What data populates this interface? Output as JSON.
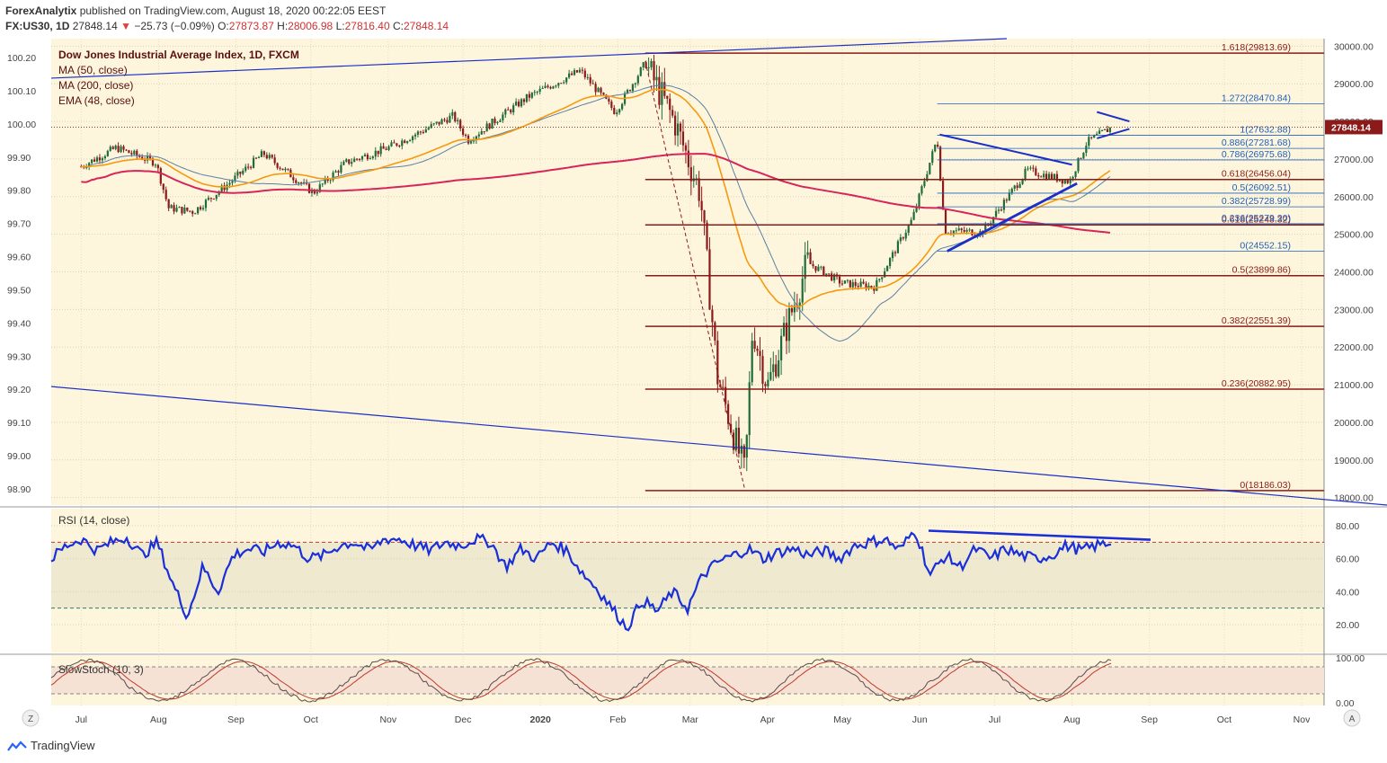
{
  "header": {
    "publisher": "ForexAnalytix",
    "published_text": "published on TradingView.com, August 18, 2020 00:22:05 EEST",
    "symbol": "FX:US30, 1D",
    "last": "27848.14",
    "change_arrow": "▼",
    "change": "−25.73 (−0.09%)",
    "o_label": "O:",
    "o": "27873.87",
    "h_label": "H:",
    "h": "28006.98",
    "l_label": "L:",
    "l": "27816.40",
    "c_label": "C:",
    "c": "27848.14"
  },
  "legend": {
    "title": "Dow Jones Industrial Average Index, 1D, FXCM",
    "ma50": "MA (50, close)",
    "ma200": "MA (200, close)",
    "ema48": "EMA (48, close)"
  },
  "rsi_label": "RSI (14, close)",
  "stoch_label": "SlowStoch (10, 3)",
  "footer": {
    "brand": "TradingView",
    "z_button": "Z",
    "a_button": "A"
  },
  "colors": {
    "background": "#fdf6dc",
    "candle_up": "#1f6b3a",
    "candle_down": "#8b1a1a",
    "ma50": "#5b7fa6",
    "ema48": "#f59a10",
    "ma200": "#d7245a",
    "fib_dark": "#8b1a1a",
    "fib_blue": "#1f5fbf",
    "trend_blue": "#1a2fc8",
    "rsi_line": "#1a2fd8",
    "last_price_bg": "#8b1a1a"
  },
  "chart_data": {
    "type": "candlestick",
    "timeframe": "1D",
    "x_ticks": [
      "Jul",
      "Aug",
      "Sep",
      "Oct",
      "Nov",
      "Dec",
      "2020",
      "Feb",
      "Mar",
      "Apr",
      "May",
      "Jun",
      "Jul",
      "Aug",
      "Sep",
      "Oct",
      "Nov"
    ],
    "right_axis": {
      "ticks": [
        "30000.00",
        "29000.00",
        "28000.00",
        "27000.00",
        "26000.00",
        "25000.00",
        "24000.00",
        "23000.00",
        "22000.00",
        "21000.00",
        "20000.00",
        "19000.00",
        "18000.00"
      ],
      "range": [
        17800,
        30200
      ],
      "last_price": "27848.14"
    },
    "left_axis": {
      "ticks": [
        "100.20",
        "100.10",
        "100.00",
        "99.90",
        "99.80",
        "99.70",
        "99.60",
        "99.50",
        "99.40",
        "99.30",
        "99.20",
        "99.10",
        "99.00",
        "98.90"
      ]
    },
    "price_close_approx": [
      {
        "date": "2019-07-01",
        "close": 26800
      },
      {
        "date": "2019-07-15",
        "close": 27300
      },
      {
        "date": "2019-07-31",
        "close": 26900
      },
      {
        "date": "2019-08-05",
        "close": 25700
      },
      {
        "date": "2019-08-15",
        "close": 25600
      },
      {
        "date": "2019-08-30",
        "close": 26400
      },
      {
        "date": "2019-09-12",
        "close": 27150
      },
      {
        "date": "2019-10-02",
        "close": 26100
      },
      {
        "date": "2019-10-15",
        "close": 26900
      },
      {
        "date": "2019-11-01",
        "close": 27300
      },
      {
        "date": "2019-11-27",
        "close": 28150
      },
      {
        "date": "2019-12-03",
        "close": 27500
      },
      {
        "date": "2019-12-27",
        "close": 28650
      },
      {
        "date": "2020-01-17",
        "close": 29350
      },
      {
        "date": "2020-01-31",
        "close": 28250
      },
      {
        "date": "2020-02-12",
        "close": 29550
      },
      {
        "date": "2020-02-24",
        "close": 27950
      },
      {
        "date": "2020-03-05",
        "close": 26100
      },
      {
        "date": "2020-03-12",
        "close": 21200
      },
      {
        "date": "2020-03-23",
        "close": 18600
      },
      {
        "date": "2020-03-26",
        "close": 22550
      },
      {
        "date": "2020-04-01",
        "close": 20950
      },
      {
        "date": "2020-04-17",
        "close": 24250
      },
      {
        "date": "2020-05-01",
        "close": 23700
      },
      {
        "date": "2020-05-14",
        "close": 23600
      },
      {
        "date": "2020-05-29",
        "close": 25400
      },
      {
        "date": "2020-06-08",
        "close": 27550
      },
      {
        "date": "2020-06-11",
        "close": 25100
      },
      {
        "date": "2020-06-26",
        "close": 25050
      },
      {
        "date": "2020-07-14",
        "close": 26700
      },
      {
        "date": "2020-07-31",
        "close": 26400
      },
      {
        "date": "2020-08-07",
        "close": 27450
      },
      {
        "date": "2020-08-17",
        "close": 27848.14
      }
    ],
    "fib_levels_dark": [
      {
        "label": "1.618(29813.69)",
        "value": 29813.69
      },
      {
        "label": "0.618(26456.04)",
        "value": 26456.04
      },
      {
        "label": "0.618(25248.32)",
        "value": 25248.32
      },
      {
        "label": "0.5(23899.86)",
        "value": 23899.86
      },
      {
        "label": "0.382(22551.39)",
        "value": 22551.39
      },
      {
        "label": "0.236(20882.95)",
        "value": 20882.95
      },
      {
        "label": "0(18186.03)",
        "value": 18186.03
      }
    ],
    "fib_levels_blue": [
      {
        "label": "1.272(28470.84)",
        "value": 28470.84
      },
      {
        "label": "1(27632.88)",
        "value": 27632.88
      },
      {
        "label": "0.886(27281.68)",
        "value": 27281.68
      },
      {
        "label": "0.786(26975.68)",
        "value": 26975.68
      },
      {
        "label": "0.5(26092.51)",
        "value": 26092.51
      },
      {
        "label": "0.382(25728.99)",
        "value": 25728.99
      },
      {
        "label": "0.236(25279.20)",
        "value": 25279.2
      },
      {
        "label": "0(24552.15)",
        "value": 24552.15
      }
    ],
    "rsi": {
      "name": "RSI (14, close)",
      "ticks": [
        "80.00",
        "60.00",
        "40.00",
        "20.00"
      ],
      "overbought": 70,
      "oversold": 30,
      "approx_values": [
        60,
        68,
        72,
        65,
        70,
        73,
        62,
        70,
        45,
        25,
        55,
        40,
        62,
        66,
        64,
        70,
        68,
        60,
        62,
        68,
        70,
        65,
        72,
        72,
        68,
        65,
        70,
        68,
        72,
        70,
        55,
        66,
        60,
        70,
        65,
        52,
        42,
        30,
        18,
        35,
        28,
        40,
        30,
        50,
        58,
        62,
        66,
        60,
        64,
        66,
        62,
        65,
        60,
        68,
        70,
        72,
        65,
        78,
        50,
        62,
        55,
        66,
        60,
        66,
        62,
        60,
        62,
        68,
        65,
        68,
        70
      ]
    },
    "slow_stoch": {
      "name": "SlowStoch (10, 3)",
      "ticks": [
        "100.00",
        "0.00"
      ],
      "upper": 80,
      "lower": 20
    }
  }
}
